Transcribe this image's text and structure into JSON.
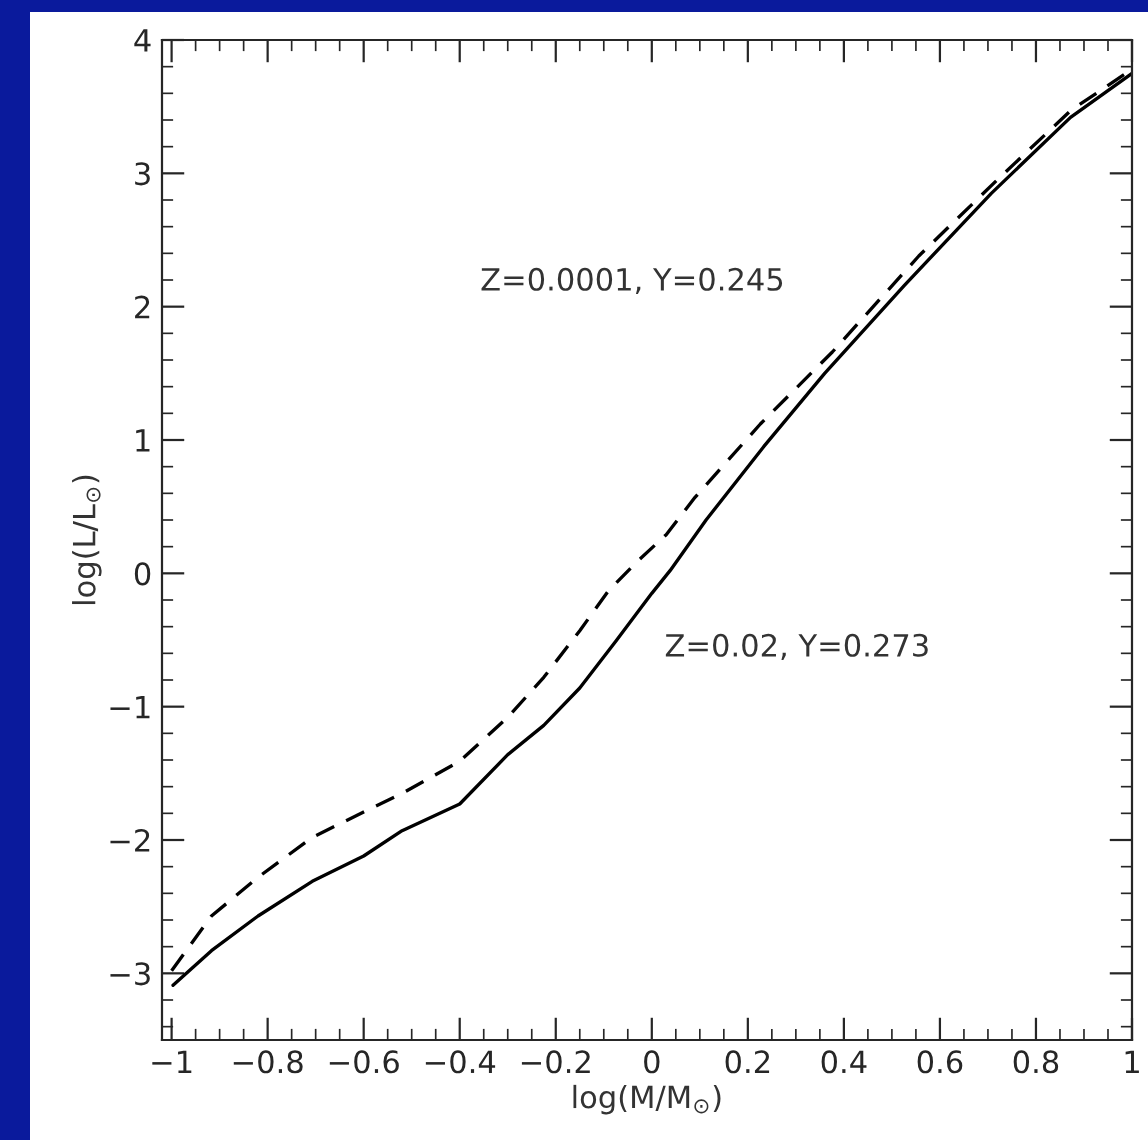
{
  "chart_data": {
    "type": "line",
    "xlabel": "log(M/M$_{⊙}$)",
    "ylabel": "log(L/L$_{⊙}$)",
    "series": [
      {
        "color": "#000000",
        "line_style": "solid",
        "x": [
          -0.997,
          -0.917,
          -0.82,
          -0.707,
          -0.6,
          -0.52,
          -0.4,
          -0.3,
          -0.225,
          -0.15,
          -0.075,
          0.0,
          0.038,
          0.113,
          0.233,
          0.36,
          0.526,
          0.707,
          0.872,
          1.0
        ],
        "values": [
          -3.09,
          -2.83,
          -2.57,
          -2.31,
          -2.12,
          -1.93,
          -1.73,
          -1.36,
          -1.14,
          -0.86,
          -0.51,
          -0.15,
          0.02,
          0.4,
          0.95,
          1.5,
          2.16,
          2.85,
          3.42,
          3.75
        ]
      },
      {
        "color": "#000000",
        "line_style": "dashed",
        "x": [
          -1.0,
          -0.917,
          -0.82,
          -0.707,
          -0.6,
          -0.52,
          -0.4,
          -0.3,
          -0.225,
          -0.15,
          -0.09,
          -0.03,
          0.03,
          0.09,
          0.226,
          0.376,
          0.556,
          0.722,
          0.872,
          1.0
        ],
        "values": [
          -2.98,
          -2.57,
          -2.28,
          -1.98,
          -1.79,
          -1.65,
          -1.41,
          -1.08,
          -0.78,
          -0.43,
          -0.13,
          0.09,
          0.29,
          0.57,
          1.12,
          1.66,
          2.38,
          2.96,
          3.47,
          3.78
        ]
      }
    ],
    "annotations": [
      "Z=0.0001, Y=0.245",
      "Z=0.02, Y=0.273"
    ],
    "xlim": [
      -1.02,
      1.0
    ],
    "ylim": [
      -3.5,
      4
    ],
    "xticks": [
      {
        "value": -1,
        "label": "−1"
      },
      {
        "value": -0.8,
        "label": "−0.8"
      },
      {
        "value": -0.6,
        "label": "−0.6"
      },
      {
        "value": -0.4,
        "label": "−0.4"
      },
      {
        "value": -0.2,
        "label": "−0.2"
      },
      0,
      0.2,
      0.4,
      0.6,
      0.8,
      1
    ],
    "yticks": [
      {
        "value": -3,
        "label": "−3"
      },
      {
        "value": -2,
        "label": "−2"
      },
      {
        "value": -1,
        "label": "−1"
      },
      0,
      1,
      2,
      3,
      4
    ],
    "grid": false,
    "legend": false,
    "marker": "none"
  }
}
